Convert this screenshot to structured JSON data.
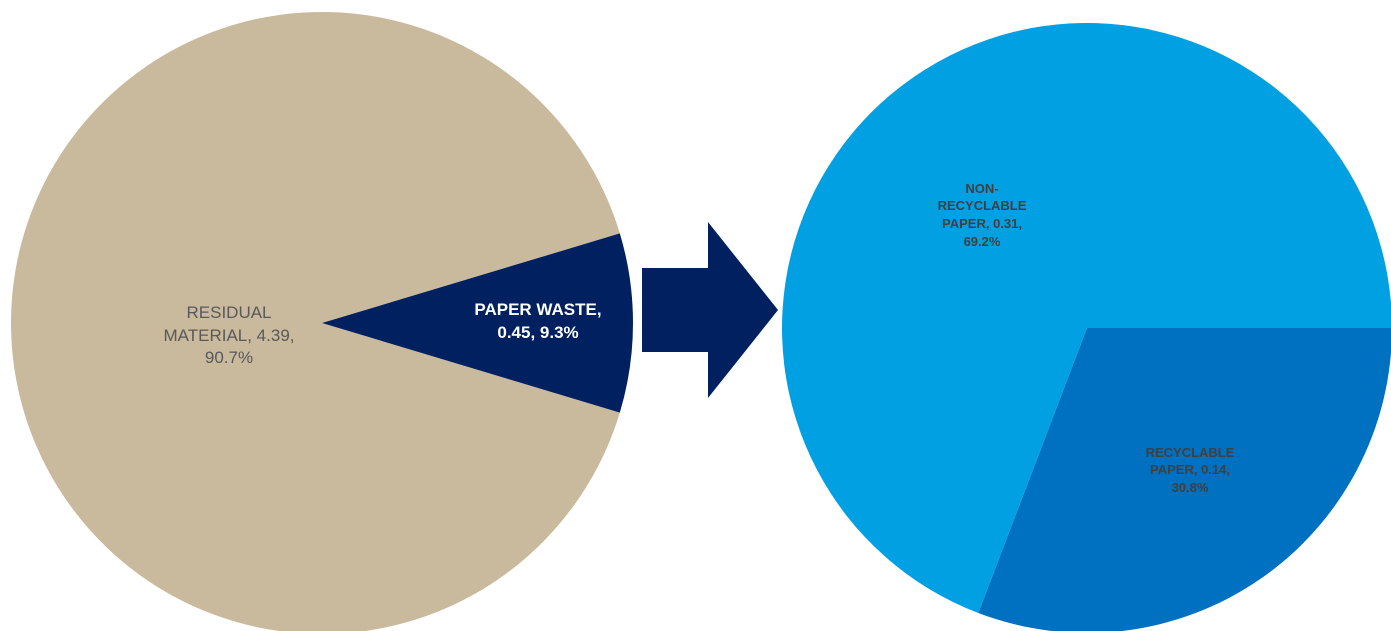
{
  "chart_data": [
    {
      "type": "pie",
      "labels": [
        "RESIDUAL MATERIAL, 4.39, 90.7%",
        "PAPER WASTE, 0.45, 9.3%"
      ],
      "values": [
        90.7,
        9.3
      ],
      "colors": [
        "#c9b99d",
        "#002060"
      ]
    },
    {
      "type": "pie",
      "labels": [
        "RECYCLABLE PAPER, 0.14, 30.8%",
        "NON-RECYCLABLE PAPER, 0.31, 69.2%"
      ],
      "values": [
        30.8,
        69.2
      ],
      "colors": [
        "#0070c0",
        "#00a0e3"
      ]
    }
  ]
}
